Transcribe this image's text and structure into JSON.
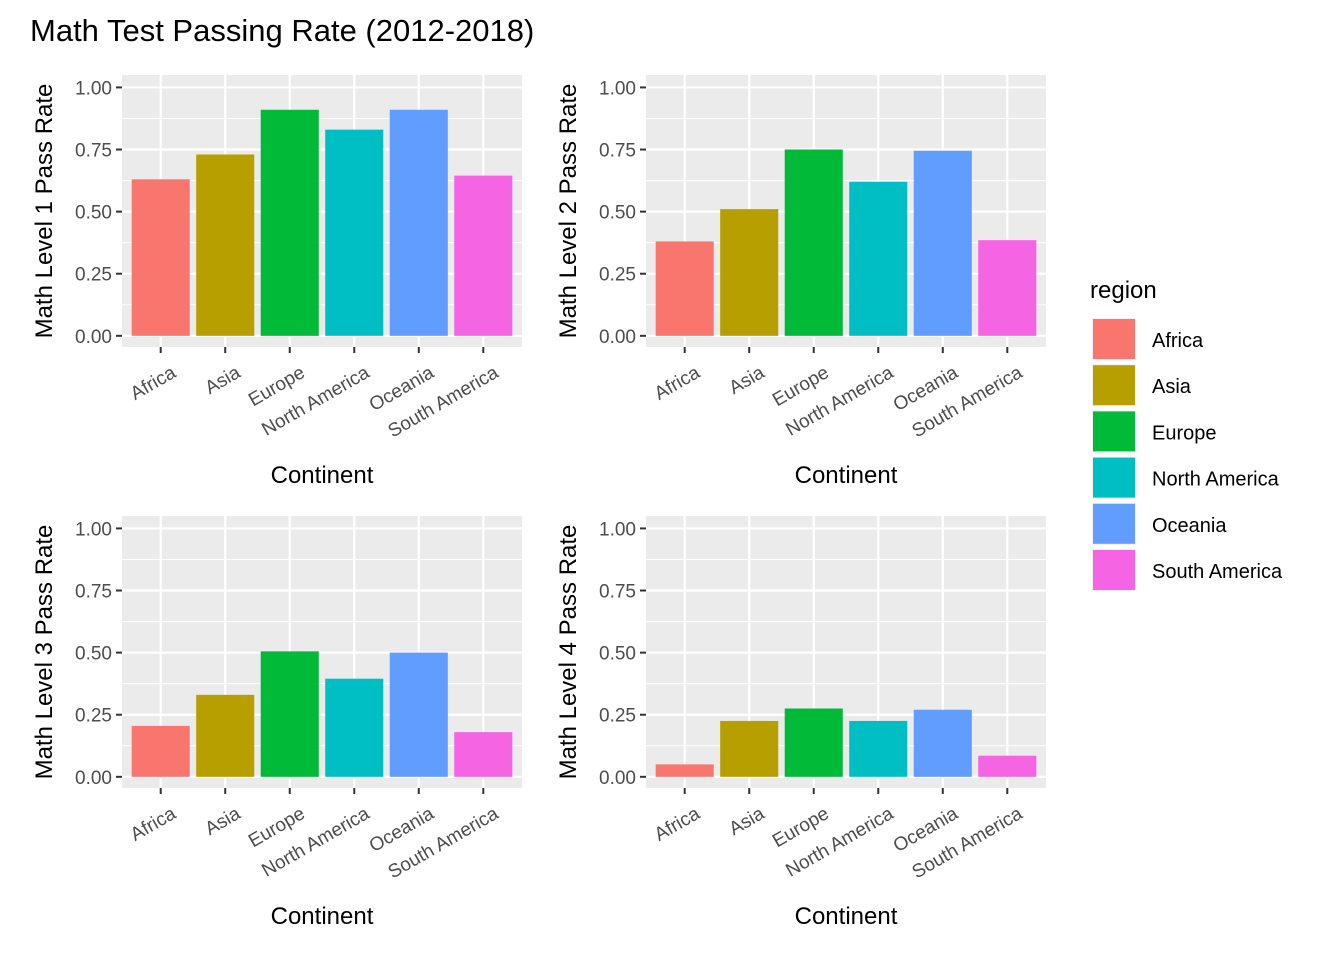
{
  "title": "Math Test Passing Rate (2012-2018)",
  "legend": {
    "title": "region",
    "items": [
      {
        "label": "Africa",
        "color": "#F8766D"
      },
      {
        "label": "Asia",
        "color": "#B79F00"
      },
      {
        "label": "Europe",
        "color": "#00BA38"
      },
      {
        "label": "North America",
        "color": "#00BFC4"
      },
      {
        "label": "Oceania",
        "color": "#619CFF"
      },
      {
        "label": "South America",
        "color": "#F564E3"
      }
    ]
  },
  "chart_data": [
    {
      "type": "bar",
      "categories": [
        "Africa",
        "Asia",
        "Europe",
        "North America",
        "Oceania",
        "South America"
      ],
      "values": [
        0.63,
        0.73,
        0.91,
        0.83,
        0.91,
        0.645
      ],
      "xlabel": "Continent",
      "ylabel": "Math Level 1 Pass Rate",
      "ylim": [
        0,
        1.05
      ],
      "yticks": [
        "0.00",
        "0.25",
        "0.50",
        "0.75",
        "1.00"
      ],
      "grid": true
    },
    {
      "type": "bar",
      "categories": [
        "Africa",
        "Asia",
        "Europe",
        "North America",
        "Oceania",
        "South America"
      ],
      "values": [
        0.38,
        0.51,
        0.75,
        0.62,
        0.745,
        0.385
      ],
      "xlabel": "Continent",
      "ylabel": "Math Level 2 Pass Rate",
      "ylim": [
        0,
        1.05
      ],
      "yticks": [
        "0.00",
        "0.25",
        "0.50",
        "0.75",
        "1.00"
      ],
      "grid": true
    },
    {
      "type": "bar",
      "categories": [
        "Africa",
        "Asia",
        "Europe",
        "North America",
        "Oceania",
        "South America"
      ],
      "values": [
        0.205,
        0.33,
        0.505,
        0.395,
        0.5,
        0.18
      ],
      "xlabel": "Continent",
      "ylabel": "Math Level 3 Pass Rate",
      "ylim": [
        0,
        1.05
      ],
      "yticks": [
        "0.00",
        "0.25",
        "0.50",
        "0.75",
        "1.00"
      ],
      "grid": true
    },
    {
      "type": "bar",
      "categories": [
        "Africa",
        "Asia",
        "Europe",
        "North America",
        "Oceania",
        "South America"
      ],
      "values": [
        0.05,
        0.225,
        0.275,
        0.225,
        0.27,
        0.085
      ],
      "xlabel": "Continent",
      "ylabel": "Math Level 4 Pass Rate",
      "ylim": [
        0,
        1.05
      ],
      "yticks": [
        "0.00",
        "0.25",
        "0.50",
        "0.75",
        "1.00"
      ],
      "grid": true
    }
  ]
}
